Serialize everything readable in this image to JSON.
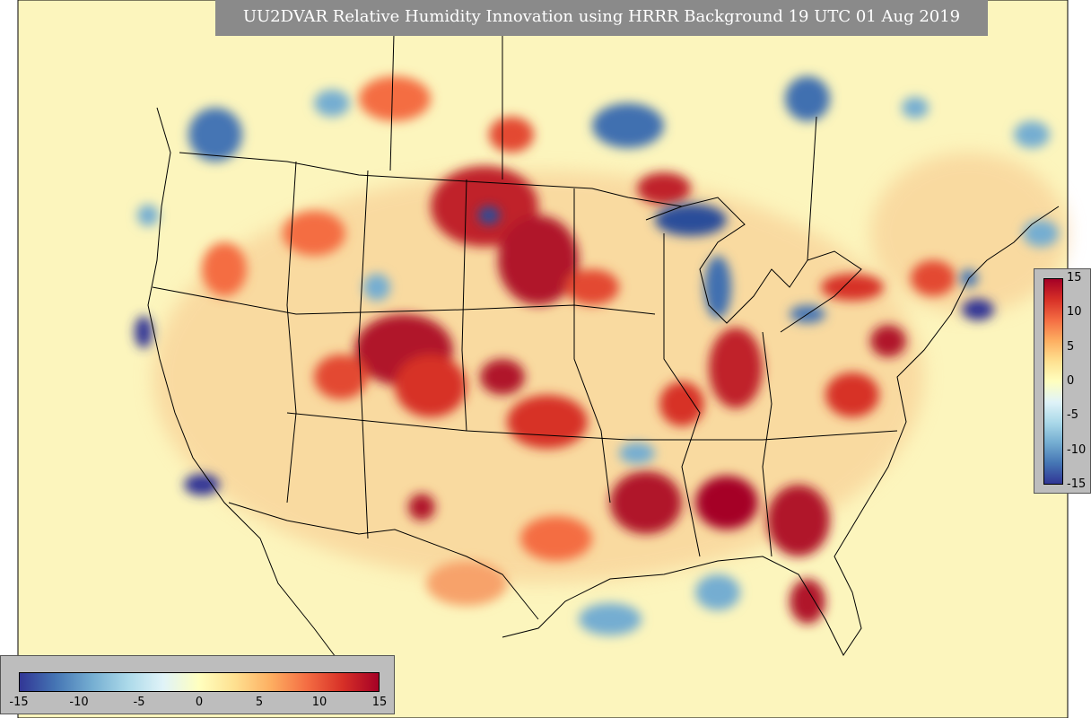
{
  "title": "UU2DVAR Relative Humidity Innovation using HRRR Background 19 UTC 01 Aug 2019",
  "colorbar": {
    "min": -15,
    "max": 15,
    "ticks": [
      "-15",
      "-10",
      "-5",
      "0",
      "5",
      "10",
      "15"
    ],
    "colors": [
      "#313695",
      "#4575b4",
      "#74add1",
      "#abd9e9",
      "#e0f3f8",
      "#ffffbf",
      "#fee090",
      "#fdae61",
      "#f46d43",
      "#d73027",
      "#a50026"
    ]
  },
  "map": {
    "background_color": "#fcf5bd",
    "ocean_color": "#fbf3c2",
    "boundary_color": "#000000"
  }
}
